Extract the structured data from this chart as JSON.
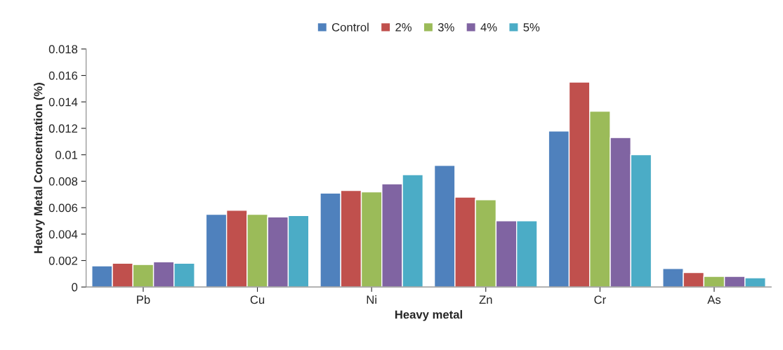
{
  "chart_data": {
    "type": "bar",
    "xlabel": "Heavy metal",
    "ylabel": "Heavy Metal Concentration (%)",
    "categories": [
      "Pb",
      "Cu",
      "Ni",
      "Zn",
      "Cr",
      "As"
    ],
    "series": [
      {
        "name": "Control",
        "color": "#4f81bd",
        "values": [
          0.0016,
          0.0055,
          0.0071,
          0.0092,
          0.0118,
          0.0014
        ]
      },
      {
        "name": "2%",
        "color": "#c0504d",
        "values": [
          0.0018,
          0.0058,
          0.0073,
          0.0068,
          0.0155,
          0.0011
        ]
      },
      {
        "name": "3%",
        "color": "#9bbb59",
        "values": [
          0.0017,
          0.0055,
          0.0072,
          0.0066,
          0.0133,
          0.0008
        ]
      },
      {
        "name": "4%",
        "color": "#8064a2",
        "values": [
          0.0019,
          0.0053,
          0.0078,
          0.005,
          0.0113,
          0.0008
        ]
      },
      {
        "name": "5%",
        "color": "#4bacc6",
        "values": [
          0.0018,
          0.0054,
          0.0085,
          0.005,
          0.01,
          0.0007
        ]
      }
    ],
    "ylim": [
      0,
      0.018
    ],
    "yticks": [
      0,
      0.002,
      0.004,
      0.006,
      0.008,
      0.01,
      0.012,
      0.014,
      0.016,
      0.018
    ],
    "grid": false,
    "legend": "top"
  }
}
